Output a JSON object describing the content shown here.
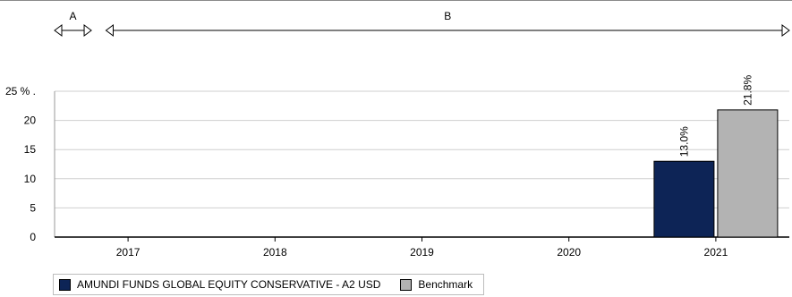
{
  "chart_data": {
    "type": "bar",
    "categories": [
      "2017",
      "2018",
      "2019",
      "2020",
      "2021"
    ],
    "series": [
      {
        "name": "AMUNDI FUNDS GLOBAL EQUITY CONSERVATIVE - A2 USD",
        "color": "#0d2456",
        "values": [
          null,
          null,
          null,
          null,
          13.0
        ],
        "labels": [
          "",
          "",
          "",
          "",
          "13.0%"
        ]
      },
      {
        "name": "Benchmark",
        "color": "#b3b3b3",
        "values": [
          null,
          null,
          null,
          null,
          21.8
        ],
        "labels": [
          "",
          "",
          "",
          "",
          "21.8%"
        ]
      }
    ],
    "yticks": [
      {
        "value": 0,
        "label": "0"
      },
      {
        "value": 5,
        "label": "5"
      },
      {
        "value": 10,
        "label": "10"
      },
      {
        "value": 15,
        "label": "15"
      },
      {
        "value": 20,
        "label": "20"
      },
      {
        "value": 25,
        "label": "25 % ."
      }
    ],
    "ylim": [
      0,
      25
    ],
    "grid": true,
    "periods": [
      {
        "label": "A",
        "start": 2016.5,
        "end": 2016.75
      },
      {
        "label": "B",
        "start": 2016.85,
        "end": 2021.5
      }
    ],
    "legend_position": "bottom-left"
  }
}
